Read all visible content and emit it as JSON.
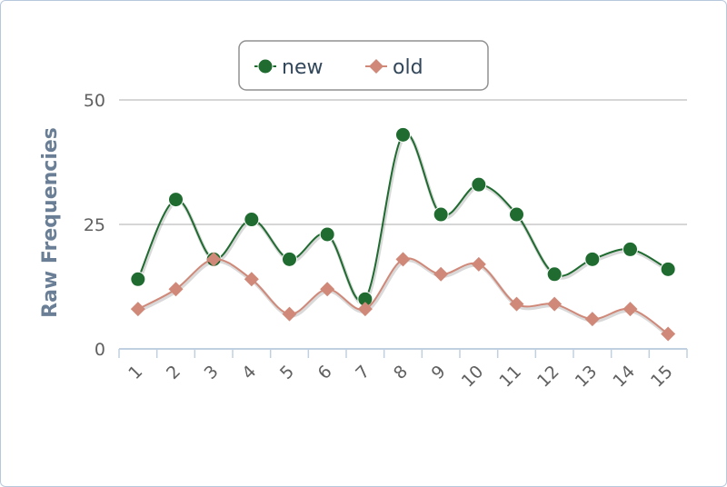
{
  "chart_data": {
    "type": "line",
    "y_label": "Raw Frequencies",
    "categories": [
      "1",
      "2",
      "3",
      "4",
      "5",
      "6",
      "7",
      "8",
      "9",
      "10",
      "11",
      "12",
      "13",
      "14",
      "15"
    ],
    "series": [
      {
        "name": "new",
        "color": "#1f6b30",
        "marker": "circle",
        "values": [
          14,
          30,
          18,
          26,
          18,
          23,
          10,
          43,
          27,
          33,
          27,
          15,
          18,
          20,
          16
        ]
      },
      {
        "name": "old",
        "color": "#d08878",
        "marker": "diamond",
        "values": [
          8,
          12,
          18,
          14,
          7,
          12,
          8,
          18,
          15,
          17,
          9,
          9,
          6,
          8,
          3
        ]
      }
    ],
    "ylim": [
      0,
      50
    ],
    "yticks": [
      0,
      25,
      50
    ],
    "grid": true,
    "legend": "top",
    "smooth": true
  }
}
